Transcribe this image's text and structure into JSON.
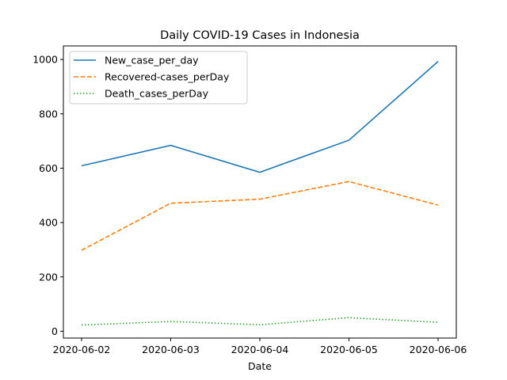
{
  "chart_data": {
    "type": "line",
    "title": "Daily COVID-19 Cases in Indonesia",
    "xlabel": "Date",
    "ylabel": "",
    "x": [
      "2020-06-02",
      "2020-06-03",
      "2020-06-04",
      "2020-06-05",
      "2020-06-06"
    ],
    "ylim": [
      -25,
      1050
    ],
    "yticks": [
      0,
      200,
      400,
      600,
      800,
      1000
    ],
    "legend_position": "top-left",
    "grid": false,
    "series": [
      {
        "name": "New_case_per_day",
        "values": [
          609,
          684,
          585,
          703,
          993
        ],
        "color": "#1f77b4",
        "style": "solid"
      },
      {
        "name": "Recovered-cases_perDay",
        "values": [
          298,
          471,
          486,
          551,
          464
        ],
        "color": "#ff7f0e",
        "style": "dashed"
      },
      {
        "name": "Death_cases_perDay",
        "values": [
          23,
          36,
          24,
          50,
          33
        ],
        "color": "#2ca02c",
        "style": "dotted"
      }
    ]
  }
}
